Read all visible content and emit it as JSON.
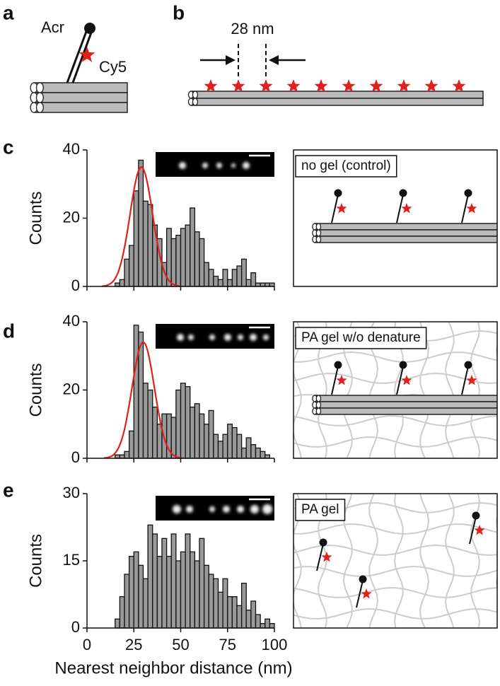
{
  "panel_letters": [
    "a",
    "b",
    "c",
    "d",
    "e"
  ],
  "schematic_a": {
    "linker": "Acr",
    "dye": "Cy5"
  },
  "schematic_b": {
    "spacing": "28 nm"
  },
  "schematic_labels": [
    "no gel (control)",
    "PA gel w/o denature",
    "PA gel"
  ],
  "chart_data": [
    {
      "type": "histogram",
      "ylabel": "Counts",
      "color": "#999999",
      "show_xtick_labels": false,
      "bins": [
        15,
        17.5,
        20,
        22.5,
        25,
        27.5,
        30,
        32.5,
        35,
        37.5,
        40,
        42.5,
        45,
        47.5,
        50,
        52.5,
        55,
        57.5,
        60,
        62.5,
        65,
        67.5,
        70,
        72.5,
        75,
        77.5,
        80,
        82.5,
        85,
        87.5,
        90,
        92.5,
        95,
        97.5,
        100
      ],
      "counts": [
        1,
        2,
        8,
        12,
        28,
        37,
        25,
        24,
        18,
        14,
        7,
        17,
        14,
        15,
        17,
        18,
        23,
        16,
        14,
        7,
        5,
        3,
        2,
        5,
        2,
        5,
        6,
        8,
        2,
        4,
        1,
        1,
        1,
        1
      ],
      "fit": {
        "mean": 29,
        "sigma": 6,
        "amplitude": 35,
        "color": "#e0201b"
      },
      "xlim": [
        0,
        100
      ],
      "xticks": [
        0,
        25,
        50,
        75,
        100
      ],
      "ylim": [
        0,
        40
      ],
      "yticks": [
        0,
        20,
        40
      ]
    },
    {
      "type": "histogram",
      "ylabel": "Counts",
      "color": "#999999",
      "show_xtick_labels": false,
      "bins": [
        15,
        17.5,
        20,
        22.5,
        25,
        27.5,
        30,
        32.5,
        35,
        37.5,
        40,
        42.5,
        45,
        47.5,
        50,
        52.5,
        55,
        57.5,
        60,
        62.5,
        65,
        67.5,
        70,
        72.5,
        75,
        77.5,
        80,
        82.5,
        85,
        87.5,
        90,
        92.5,
        95,
        97.5,
        100
      ],
      "counts": [
        1,
        1,
        2,
        8,
        39,
        37,
        22,
        20,
        15,
        10,
        13,
        13,
        12,
        20,
        22,
        21,
        15,
        16,
        13,
        10,
        14,
        7,
        5,
        7,
        10,
        9,
        7,
        3,
        6,
        4,
        3,
        2,
        1,
        0
      ],
      "fit": {
        "mean": 30,
        "sigma": 6,
        "amplitude": 34,
        "color": "#e0201b"
      },
      "xlim": [
        0,
        100
      ],
      "xticks": [
        0,
        25,
        50,
        75,
        100
      ],
      "ylim": [
        0,
        40
      ],
      "yticks": [
        0,
        20,
        40
      ]
    },
    {
      "type": "histogram",
      "ylabel": "Counts",
      "xlabel": "Nearest neighbor distance (nm)",
      "color": "#999999",
      "show_xtick_labels": true,
      "bins": [
        15,
        17.5,
        20,
        22.5,
        25,
        27.5,
        30,
        32.5,
        35,
        37.5,
        40,
        42.5,
        45,
        47.5,
        50,
        52.5,
        55,
        57.5,
        60,
        62.5,
        65,
        67.5,
        70,
        72.5,
        75,
        77.5,
        80,
        82.5,
        85,
        87.5,
        90,
        92.5,
        95,
        97.5,
        100
      ],
      "counts": [
        2,
        7,
        12,
        16,
        17,
        14,
        11,
        23,
        21,
        16,
        20,
        16,
        21,
        15,
        17,
        21,
        17,
        15,
        20,
        14,
        12,
        11,
        8,
        11,
        7,
        7,
        5,
        10,
        4,
        6,
        3,
        1,
        2,
        1
      ],
      "xlim": [
        0,
        100
      ],
      "xticks": [
        0,
        25,
        50,
        75,
        100
      ],
      "ylim": [
        0,
        30
      ],
      "yticks": [
        0,
        15,
        30
      ]
    }
  ]
}
